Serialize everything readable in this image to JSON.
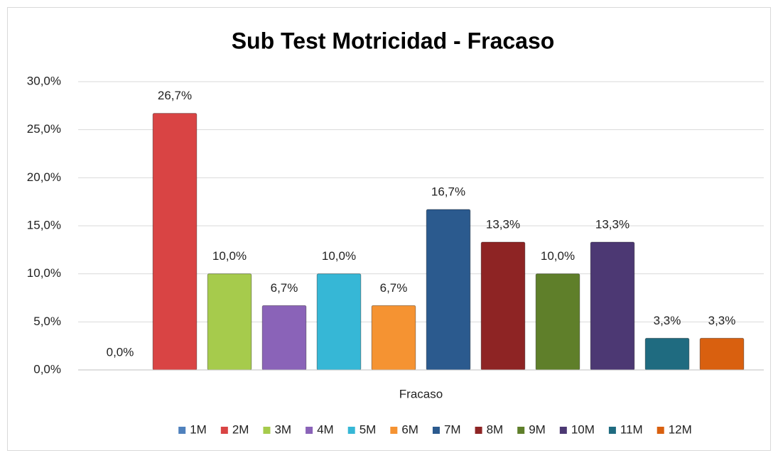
{
  "chart_data": {
    "type": "bar",
    "title": "Sub Test Motricidad - Fracaso",
    "categories": [
      "Fracaso"
    ],
    "series": [
      {
        "name": "1M",
        "color": "#4f81bd",
        "values": [
          0
        ],
        "value_labels": [
          "0,0%"
        ]
      },
      {
        "name": "2M",
        "color": "#d94444",
        "values": [
          26.7
        ],
        "value_labels": [
          "26,7%"
        ]
      },
      {
        "name": "3M",
        "color": "#a6cb4c",
        "values": [
          10
        ],
        "value_labels": [
          "10,0%"
        ]
      },
      {
        "name": "4M",
        "color": "#8a63b8",
        "values": [
          6.7
        ],
        "value_labels": [
          "6,7%"
        ]
      },
      {
        "name": "5M",
        "color": "#36b7d6",
        "values": [
          10
        ],
        "value_labels": [
          "10,0%"
        ]
      },
      {
        "name": "6M",
        "color": "#f59332",
        "values": [
          6.7
        ],
        "value_labels": [
          "6,7%"
        ]
      },
      {
        "name": "7M",
        "color": "#2b5a8e",
        "values": [
          16.7
        ],
        "value_labels": [
          "16,7%"
        ]
      },
      {
        "name": "8M",
        "color": "#8e2424",
        "values": [
          13.3
        ],
        "value_labels": [
          "13,3%"
        ]
      },
      {
        "name": "9M",
        "color": "#5f7f2a",
        "values": [
          10
        ],
        "value_labels": [
          "10,0%"
        ]
      },
      {
        "name": "10M",
        "color": "#4c3873",
        "values": [
          13.3
        ],
        "value_labels": [
          "13,3%"
        ]
      },
      {
        "name": "11M",
        "color": "#1f6b80",
        "values": [
          3.3
        ],
        "value_labels": [
          "3,3%"
        ]
      },
      {
        "name": "12M",
        "color": "#d9600f",
        "values": [
          3.3
        ],
        "value_labels": [
          "3,3%"
        ]
      }
    ],
    "ylim": [
      0,
      30
    ],
    "yticks": [
      {
        "value": 0,
        "label": "0,0%"
      },
      {
        "value": 5,
        "label": "5,0%"
      },
      {
        "value": 10,
        "label": "10,0%"
      },
      {
        "value": 15,
        "label": "15,0%"
      },
      {
        "value": 20,
        "label": "20,0%"
      },
      {
        "value": 25,
        "label": "25,0%"
      },
      {
        "value": 30,
        "label": "30,0%"
      }
    ],
    "grid": true,
    "legend": "bottom"
  }
}
